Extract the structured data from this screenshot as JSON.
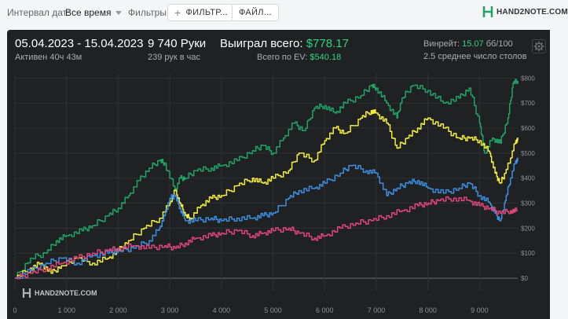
{
  "topbar": {
    "interval_label": "Интервал дат:",
    "interval_value": "Все время",
    "filters_label": "Фильтры:",
    "filter_button": "ФИЛЬТР...",
    "file_button": "ФАЙЛ...",
    "brand": "HAND2NOTE.COM"
  },
  "stats": {
    "date_range": "05.04.2023 - 15.04.2023",
    "active": "Активен 40ч 43м",
    "hands": "9 740 Руки",
    "hands_rate": "239 рук в час",
    "won_label": "Выиграл всего:",
    "won_value": "$778.17",
    "ev_label": "Всего по EV:",
    "ev_value": "$540.18",
    "winrate_label": "Винрейт:",
    "winrate_value": "15.07",
    "winrate_unit": "бб/100",
    "tables": "2.5 среднее число столов"
  },
  "watermark": "HAND2NOTE.COM",
  "colors": {
    "green": "#21a366",
    "yellow": "#f2ec3d",
    "blue": "#3b8ee0",
    "pink": "#e0457b",
    "panel": "#1f2123"
  },
  "chart_data": {
    "type": "line",
    "xlim": [
      0,
      9740
    ],
    "ylim": [
      -50,
      820
    ],
    "x_ticks": [
      "0",
      "1 000",
      "2 000",
      "3 000",
      "4 000",
      "5 000",
      "6 000",
      "7 000",
      "8 000",
      "9 000"
    ],
    "y_ticks": [
      "$0",
      "$100",
      "$200",
      "$300",
      "$400",
      "$500",
      "$600",
      "$700",
      "$800"
    ],
    "series": [
      {
        "color": "#21a366",
        "x": [
          0,
          300,
          600,
          800,
          1000,
          1300,
          1500,
          1800,
          2000,
          2200,
          2400,
          2600,
          2800,
          2900,
          3100,
          3200,
          3300,
          3500,
          3800,
          4000,
          4300,
          4600,
          4800,
          5000,
          5200,
          5400,
          5600,
          5800,
          6000,
          6200,
          6400,
          6700,
          6900,
          7000,
          7200,
          7400,
          7500,
          7700,
          8000,
          8300,
          8600,
          8800,
          9000,
          9100,
          9250,
          9400,
          9550,
          9650,
          9740
        ],
        "y": [
          0,
          80,
          100,
          150,
          170,
          190,
          210,
          250,
          280,
          330,
          390,
          440,
          470,
          460,
          350,
          400,
          400,
          430,
          440,
          450,
          470,
          510,
          530,
          500,
          560,
          620,
          590,
          680,
          690,
          660,
          700,
          730,
          770,
          760,
          700,
          640,
          720,
          770,
          750,
          700,
          720,
          760,
          620,
          500,
          560,
          540,
          640,
          780,
          790
        ]
      },
      {
        "color": "#f2ec3d",
        "x": [
          0,
          300,
          500,
          700,
          900,
          1200,
          1500,
          1800,
          2000,
          2200,
          2500,
          2800,
          3000,
          3100,
          3200,
          3300,
          3400,
          3600,
          3800,
          4000,
          4300,
          4600,
          4800,
          5000,
          5300,
          5500,
          5800,
          6000,
          6200,
          6400,
          6700,
          6900,
          7000,
          7200,
          7400,
          7600,
          7800,
          8000,
          8300,
          8600,
          8800,
          9000,
          9200,
          9300,
          9400,
          9500,
          9600,
          9700,
          9740
        ],
        "y": [
          0,
          40,
          60,
          20,
          50,
          80,
          60,
          80,
          110,
          150,
          200,
          240,
          300,
          350,
          300,
          250,
          240,
          290,
          320,
          330,
          370,
          400,
          380,
          400,
          430,
          500,
          470,
          550,
          600,
          580,
          640,
          670,
          660,
          620,
          520,
          560,
          600,
          640,
          600,
          560,
          560,
          550,
          500,
          420,
          380,
          420,
          480,
          550,
          550
        ]
      },
      {
        "color": "#3b8ee0",
        "x": [
          0,
          300,
          600,
          900,
          1200,
          1500,
          1800,
          2000,
          2300,
          2600,
          2800,
          2900,
          3000,
          3100,
          3200,
          3300,
          3500,
          3800,
          4000,
          4300,
          4600,
          4800,
          5000,
          5300,
          5500,
          5800,
          6000,
          6300,
          6500,
          6800,
          7000,
          7200,
          7400,
          7600,
          7800,
          8000,
          8300,
          8600,
          8800,
          9000,
          9200,
          9300,
          9400,
          9500,
          9600,
          9700,
          9740
        ],
        "y": [
          0,
          30,
          60,
          80,
          60,
          90,
          100,
          110,
          120,
          150,
          200,
          250,
          320,
          330,
          280,
          230,
          230,
          240,
          230,
          240,
          240,
          250,
          260,
          320,
          350,
          360,
          380,
          420,
          450,
          430,
          420,
          330,
          360,
          380,
          390,
          360,
          340,
          360,
          380,
          330,
          300,
          260,
          230,
          310,
          400,
          470,
          470
        ]
      },
      {
        "color": "#e0457b",
        "x": [
          0,
          300,
          600,
          900,
          1200,
          1500,
          1800,
          2000,
          2300,
          2600,
          2900,
          3100,
          3300,
          3500,
          3800,
          4000,
          4300,
          4600,
          4800,
          5000,
          5300,
          5500,
          5800,
          6000,
          6300,
          6600,
          6900,
          7200,
          7500,
          7800,
          8000,
          8200,
          8500,
          8800,
          9000,
          9200,
          9400,
          9600,
          9740
        ],
        "y": [
          0,
          20,
          40,
          60,
          80,
          100,
          110,
          120,
          130,
          120,
          130,
          120,
          140,
          160,
          170,
          180,
          190,
          170,
          180,
          190,
          200,
          180,
          160,
          170,
          200,
          220,
          230,
          250,
          270,
          290,
          300,
          310,
          320,
          310,
          290,
          280,
          260,
          270,
          270
        ]
      }
    ]
  }
}
